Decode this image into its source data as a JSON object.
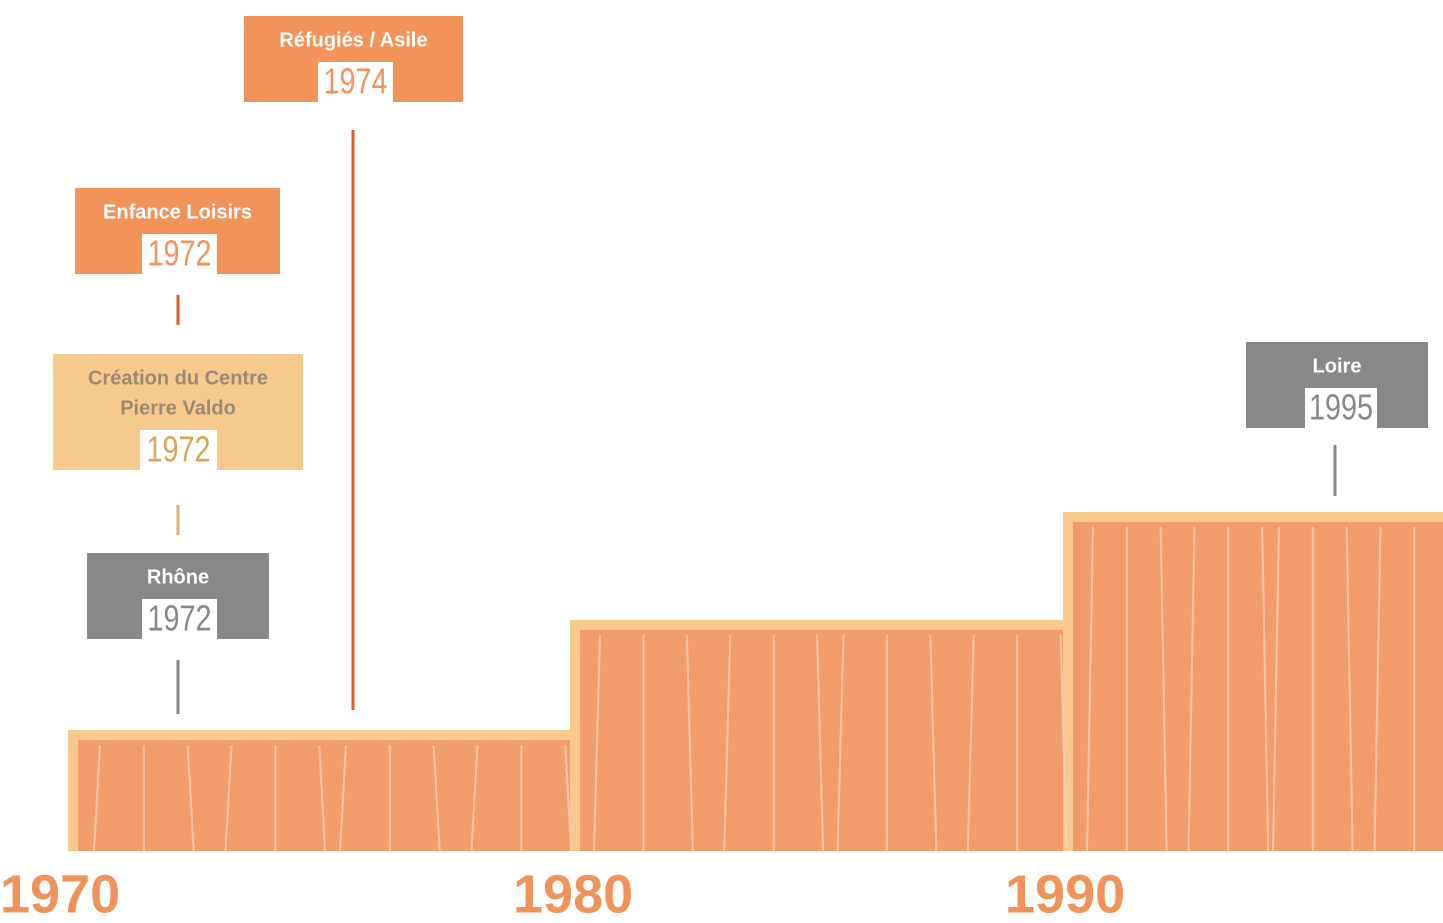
{
  "events": [
    {
      "lines": [
        "Réfugiés / Asile"
      ],
      "year": "1974"
    },
    {
      "lines": [
        "Enfance Loisirs"
      ],
      "year": "1972"
    },
    {
      "lines": [
        "Création du Centre",
        "Pierre  Valdo"
      ],
      "year": "1972"
    },
    {
      "lines": [
        "Rhône"
      ],
      "year": "1972"
    },
    {
      "lines": [
        "Loire"
      ],
      "year": "1995"
    }
  ],
  "decades": [
    "1970",
    "1980",
    "1990"
  ]
}
